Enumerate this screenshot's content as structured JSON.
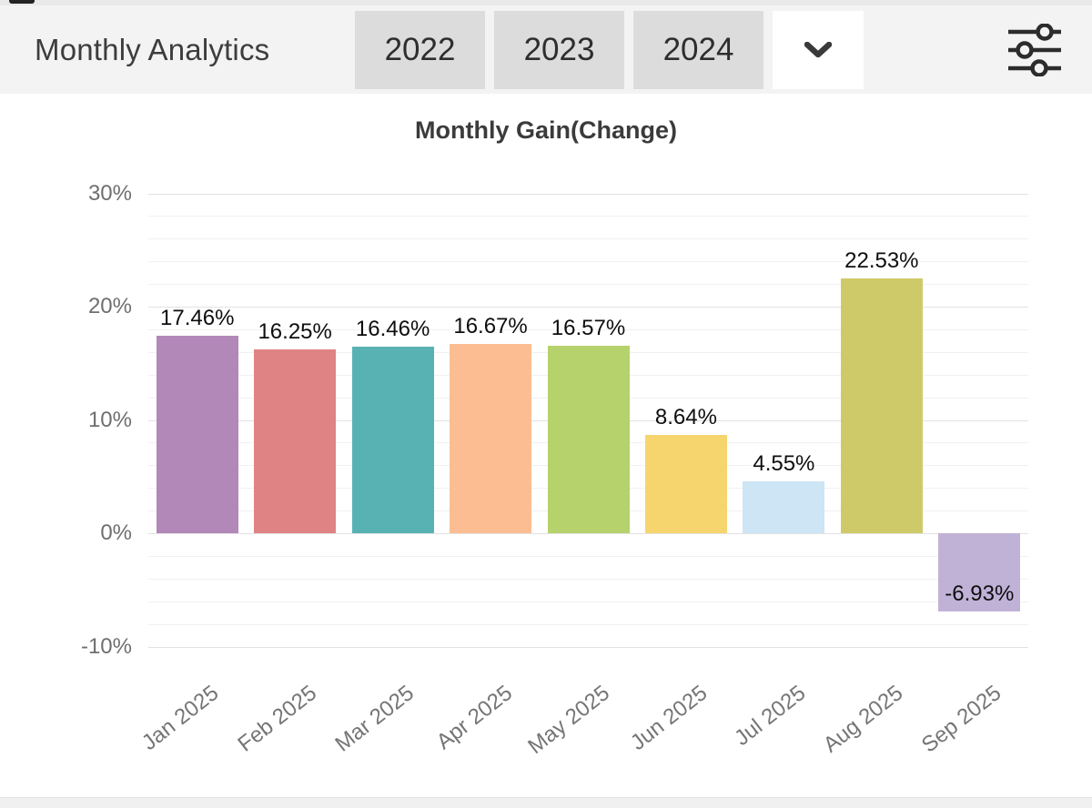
{
  "header": {
    "title": "Monthly Analytics",
    "year_buttons": [
      "2022",
      "2023",
      "2024"
    ],
    "icons": {
      "dropdown": "chevron-down",
      "settings": "sliders"
    }
  },
  "chart_data": {
    "type": "bar",
    "title": "Monthly Gain(Change)",
    "categories": [
      "Jan 2025",
      "Feb 2025",
      "Mar 2025",
      "Apr 2025",
      "May 2025",
      "Jun 2025",
      "Jul 2025",
      "Aug 2025",
      "Sep 2025"
    ],
    "values": [
      17.46,
      16.25,
      16.46,
      16.67,
      16.57,
      8.64,
      4.55,
      22.53,
      -6.93
    ],
    "value_labels": [
      "17.46%",
      "16.25%",
      "16.46%",
      "16.67%",
      "16.57%",
      "8.64%",
      "4.55%",
      "22.53%",
      "-6.93%"
    ],
    "bar_colors": [
      "#b288b8",
      "#e08384",
      "#58b2b4",
      "#fcbd92",
      "#b6d26d",
      "#f6d46e",
      "#cde5f5",
      "#cfca69",
      "#c0b2d7"
    ],
    "xlabel": "",
    "ylabel": "",
    "y_ticks": [
      {
        "label": "30%",
        "value": 30
      },
      {
        "label": "20%",
        "value": 20
      },
      {
        "label": "10%",
        "value": 10
      },
      {
        "label": "0%",
        "value": 0
      },
      {
        "label": "-10%",
        "value": -10
      }
    ],
    "ylim": [
      -12.5,
      31
    ],
    "minor_grid_step": 2,
    "grid": true,
    "legend": false
  },
  "colors": {
    "header_bg": "#f3f3f3",
    "button_bg": "#dcdcdc",
    "grid_major": "#e2e2e2",
    "grid_minor": "#f1f1f1",
    "axis_text": "#757575",
    "bar_label_text": "#0e0e0e"
  }
}
